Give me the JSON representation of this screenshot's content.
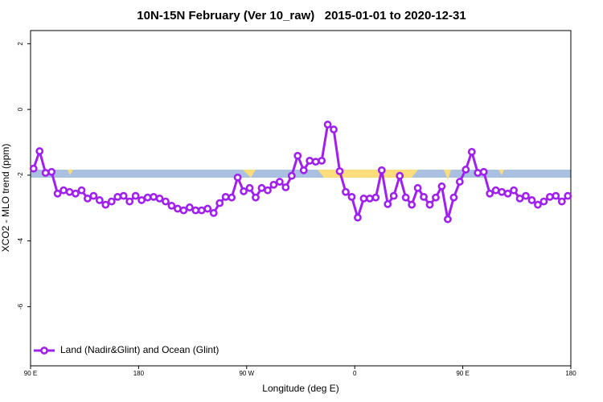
{
  "chart_data": {
    "type": "line",
    "title": "10N-15N February (Ver 10_raw)   2015-01-01 to 2020-12-31",
    "x_label": "Longitude (deg E)",
    "y_label": "XCO2 - MLO trend (ppm)",
    "xlim": [
      90,
      540
    ],
    "xticks": [
      {
        "value": 90,
        "label": "90 E"
      },
      {
        "value": 180,
        "label": "180"
      },
      {
        "value": 270,
        "label": "90 W"
      },
      {
        "value": 360,
        "label": "0"
      },
      {
        "value": 450,
        "label": "90 E"
      },
      {
        "value": 540,
        "label": "180"
      }
    ],
    "ylim": [
      -7.8,
      2.4
    ],
    "yticks": [
      2,
      0,
      -2,
      -4,
      -6
    ],
    "legend": "bottom-left",
    "x": [
      92.5,
      97.5,
      102.5,
      107.5,
      112.5,
      117.5,
      122.5,
      127.5,
      132.5,
      137.5,
      142.5,
      147.5,
      152.5,
      157.5,
      162.5,
      167.5,
      172.5,
      177.5,
      182.5,
      187.5,
      192.5,
      197.5,
      202.5,
      207.5,
      212.5,
      217.5,
      222.5,
      227.5,
      232.5,
      237.5,
      242.5,
      247.5,
      252.5,
      257.5,
      262.5,
      267.5,
      272.5,
      277.5,
      282.5,
      287.5,
      292.5,
      297.5,
      302.5,
      307.5,
      312.5,
      317.5,
      322.5,
      327.5,
      332.5,
      337.5,
      342.5,
      347.5,
      352.5,
      357.5,
      362.5,
      367.5,
      372.5,
      377.5,
      382.5,
      387.5,
      392.5,
      397.5,
      402.5,
      407.5,
      412.5,
      417.5,
      422.5,
      427.5,
      432.5,
      437.5,
      442.5,
      447.5,
      452.5,
      457.5,
      462.5,
      467.5,
      472.5,
      477.5,
      482.5,
      487.5,
      492.5,
      497.5,
      502.5,
      507.5,
      512.5,
      517.5,
      522.5,
      527.5,
      532.5,
      537.5
    ],
    "series": [
      {
        "name": "Land (Nadir&Glint) and Ocean (Glint)",
        "color": "#a020f0",
        "values": [
          -1.8,
          -1.27,
          -1.93,
          -1.9,
          -2.56,
          -2.46,
          -2.51,
          -2.56,
          -2.46,
          -2.71,
          -2.63,
          -2.76,
          -2.9,
          -2.8,
          -2.66,
          -2.63,
          -2.8,
          -2.63,
          -2.76,
          -2.68,
          -2.66,
          -2.71,
          -2.8,
          -2.93,
          -3.02,
          -3.07,
          -2.98,
          -3.07,
          -3.07,
          -3.02,
          -3.15,
          -2.85,
          -2.66,
          -2.68,
          -2.07,
          -2.49,
          -2.39,
          -2.68,
          -2.39,
          -2.46,
          -2.29,
          -2.2,
          -2.37,
          -2.02,
          -1.41,
          -1.85,
          -1.56,
          -1.59,
          -1.56,
          -0.46,
          -0.61,
          -1.88,
          -2.51,
          -2.66,
          -3.29,
          -2.71,
          -2.71,
          -2.68,
          -1.85,
          -2.88,
          -2.63,
          -2.02,
          -2.68,
          -2.9,
          -2.39,
          -2.66,
          -2.9,
          -2.68,
          -2.34,
          -3.34,
          -2.68,
          -2.2,
          -1.83,
          -1.29,
          -1.93,
          -1.9,
          -2.56,
          -2.46,
          -2.51,
          -2.56,
          -2.46,
          -2.71,
          -2.63,
          -2.76,
          -2.9,
          -2.8,
          -2.66,
          -2.63,
          -2.8,
          -2.63
        ]
      }
    ]
  }
}
